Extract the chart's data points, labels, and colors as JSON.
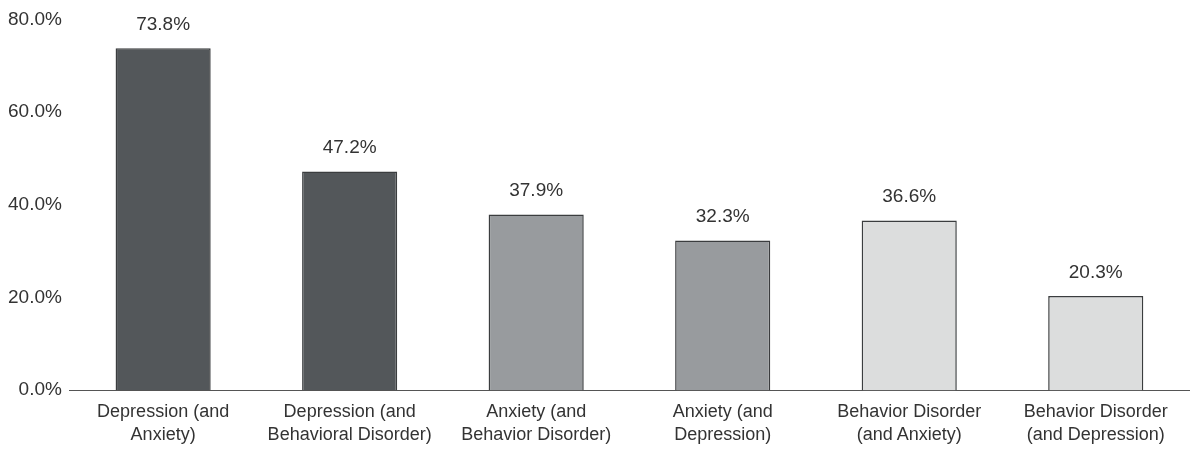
{
  "chart_data": {
    "type": "bar",
    "categories": [
      "Depression (and Anxiety)",
      "Depression (and Behavioral Disorder)",
      "Anxiety (and Behavior Disorder)",
      "Anxiety (and Depression)",
      "Behavior Disorder (and Anxiety)",
      "Behavior Disorder (and Depression)"
    ],
    "values": [
      73.8,
      47.2,
      37.9,
      32.3,
      36.6,
      20.3
    ],
    "value_labels": [
      "73.8%",
      "47.2%",
      "37.9%",
      "32.3%",
      "36.6%",
      "20.3%"
    ],
    "colors": [
      "#53575a",
      "#53575a",
      "#989b9e",
      "#989b9e",
      "#dcdddd",
      "#dcdddd"
    ],
    "ylim": [
      0,
      80
    ],
    "yticks": [
      {
        "value": 0,
        "label": "0.0%"
      },
      {
        "value": 20,
        "label": "20.0%"
      },
      {
        "value": 40,
        "label": "40.0%"
      },
      {
        "value": 60,
        "label": "60.0%"
      },
      {
        "value": 80,
        "label": "80.0%"
      }
    ],
    "grid": false,
    "legend": false
  }
}
